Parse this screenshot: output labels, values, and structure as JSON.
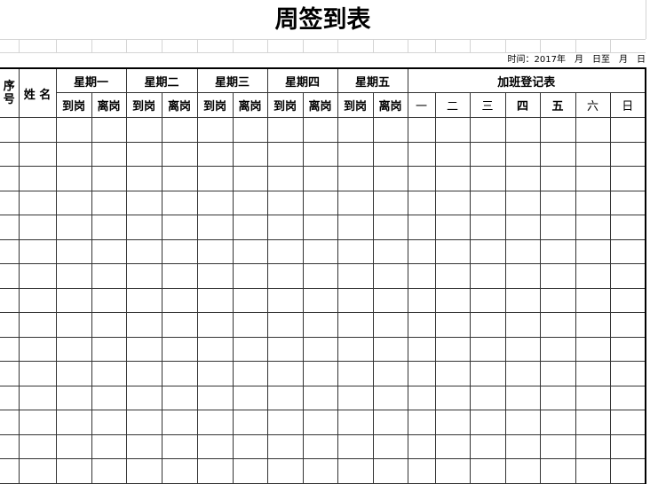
{
  "title": "周签到表",
  "time_label": "时间：2017年　月　日至　月　日",
  "headers": {
    "seq": "序号",
    "name": "姓 名",
    "days": [
      "星期一",
      "星期二",
      "星期三",
      "星期四",
      "星期五"
    ],
    "arrive": "到岗",
    "leave": "离岗",
    "overtime": "加班登记表",
    "overtime_days": [
      "一",
      "二",
      "三",
      "四",
      "五",
      "六",
      "日"
    ]
  },
  "row_count": 15
}
